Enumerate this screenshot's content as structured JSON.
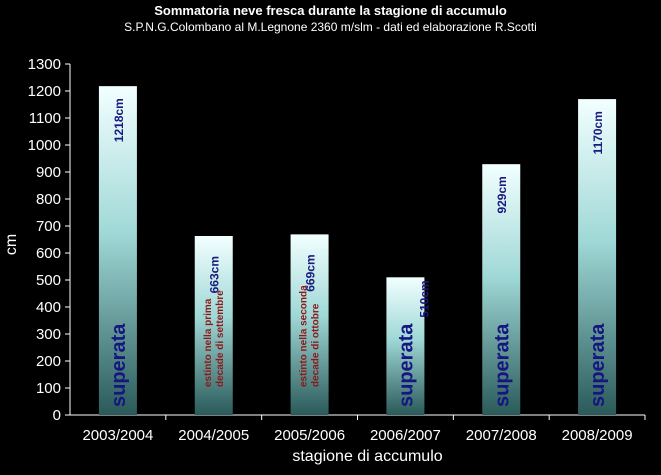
{
  "chart_data": {
    "type": "bar",
    "title": "Sommatoria  neve  fresca  durante  la  stagione  di  accumulo",
    "subtitle": "S.P.N.G.Colombano  al M.Legnone 2360 m/slm   - dati  ed elaborazione  R.Scotti",
    "xlabel": "stagione di accumulo",
    "ylabel": "cm",
    "categories": [
      "2003/2004",
      "2004/2005",
      "2005/2006",
      "2006/2007",
      "2007/2008",
      "2008/2009"
    ],
    "values": [
      1218,
      663,
      669,
      510,
      929,
      1170
    ],
    "value_labels": [
      "1218cm",
      "663cm",
      "669cm",
      "510cm",
      "929cm",
      "1170cm"
    ],
    "bar_notes": [
      [
        "superata"
      ],
      [
        "estinto nella prima",
        "decade di  settembre"
      ],
      [
        "estinto nella seconda",
        "decade di ottobre"
      ],
      [
        "superata"
      ],
      [
        "superata"
      ],
      [
        "superata"
      ]
    ],
    "ylim": [
      0,
      1300
    ],
    "yticks": [
      0,
      100,
      200,
      300,
      400,
      500,
      600,
      700,
      800,
      900,
      1000,
      1100,
      1200,
      1300
    ],
    "grid": false,
    "legend": "none",
    "colors": {
      "background": "#000000",
      "bar_top": "#f2ffff",
      "bar_mid": "#9fd8d6",
      "bar_bottom": "#2a5a5a",
      "value_label": "#1a1a7e",
      "note_superata": "#161680",
      "note_estinto": "#8b1a1a",
      "axis": "#ffffff",
      "text": "#ffffff"
    }
  }
}
